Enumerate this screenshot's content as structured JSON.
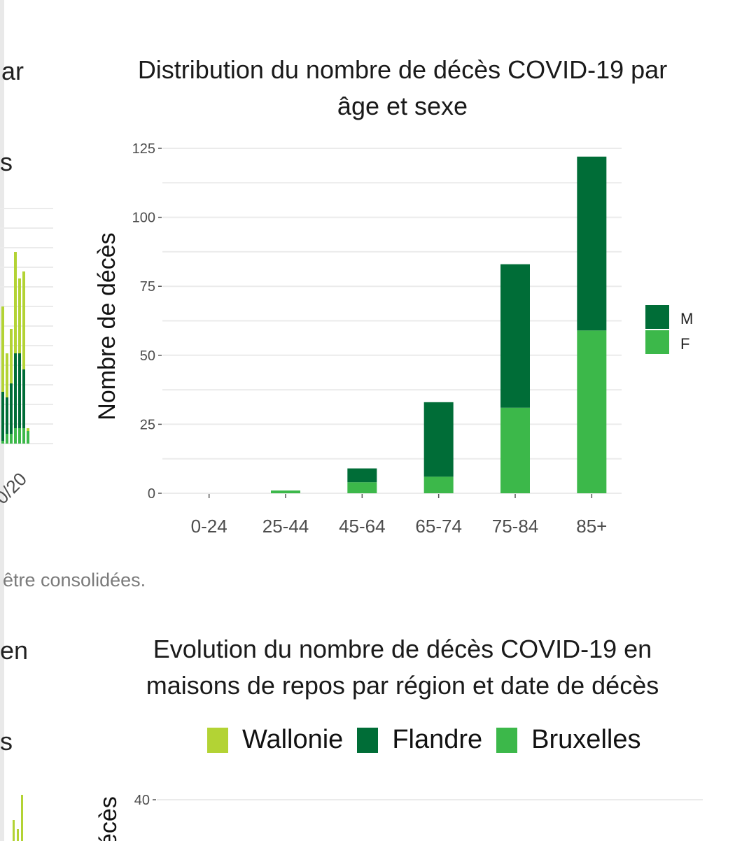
{
  "fragments": {
    "frag_ar": "ar",
    "frag_s1": "s",
    "frag_tick": "0/20",
    "note": "être consolidées.",
    "frag_en": "en",
    "frag_s2": "s"
  },
  "colors": {
    "M": "#006d37",
    "F": "#3cb84a",
    "wallonie": "#b3d334",
    "flandre": "#006d37",
    "bruxelles": "#3cb84a",
    "grid": "#ebebeb"
  },
  "chart_data": [
    {
      "type": "bar",
      "stacked": true,
      "title": "Distribution du nombre de décès COVID-19 par âge et sexe",
      "title_lines": [
        "Distribution du nombre de décès COVID-19 par",
        "âge et sexe"
      ],
      "xlabel": "",
      "ylabel": "Nombre de décès",
      "ylim": [
        0,
        125
      ],
      "yticks": [
        0,
        25,
        50,
        75,
        100,
        125
      ],
      "ytick_labels": [
        "0",
        "25",
        "50",
        "75",
        "100",
        "125"
      ],
      "categories": [
        "0-24",
        "25-44",
        "45-64",
        "65-74",
        "75-84",
        "85+"
      ],
      "series": [
        {
          "name": "F",
          "values": [
            0,
            1,
            4,
            6,
            31,
            59
          ]
        },
        {
          "name": "M",
          "values": [
            0,
            0,
            5,
            27,
            52,
            63
          ]
        }
      ],
      "legend": {
        "position": "right",
        "entries": [
          "M",
          "F"
        ]
      },
      "grid": true
    },
    {
      "type": "bar",
      "stacked": true,
      "title": "Evolution du nombre de décès COVID-19 en maisons de repos par région et date de décès",
      "title_lines": [
        "Evolution du nombre de décès COVID-19 en",
        "maisons de repos par région et date de décès"
      ],
      "ylabel": "écès",
      "yticks_visible": [
        "40"
      ],
      "legend": {
        "position": "top",
        "entries": [
          "Wallonie",
          "Flandre",
          "Bruxelles"
        ]
      },
      "grid": true
    }
  ]
}
